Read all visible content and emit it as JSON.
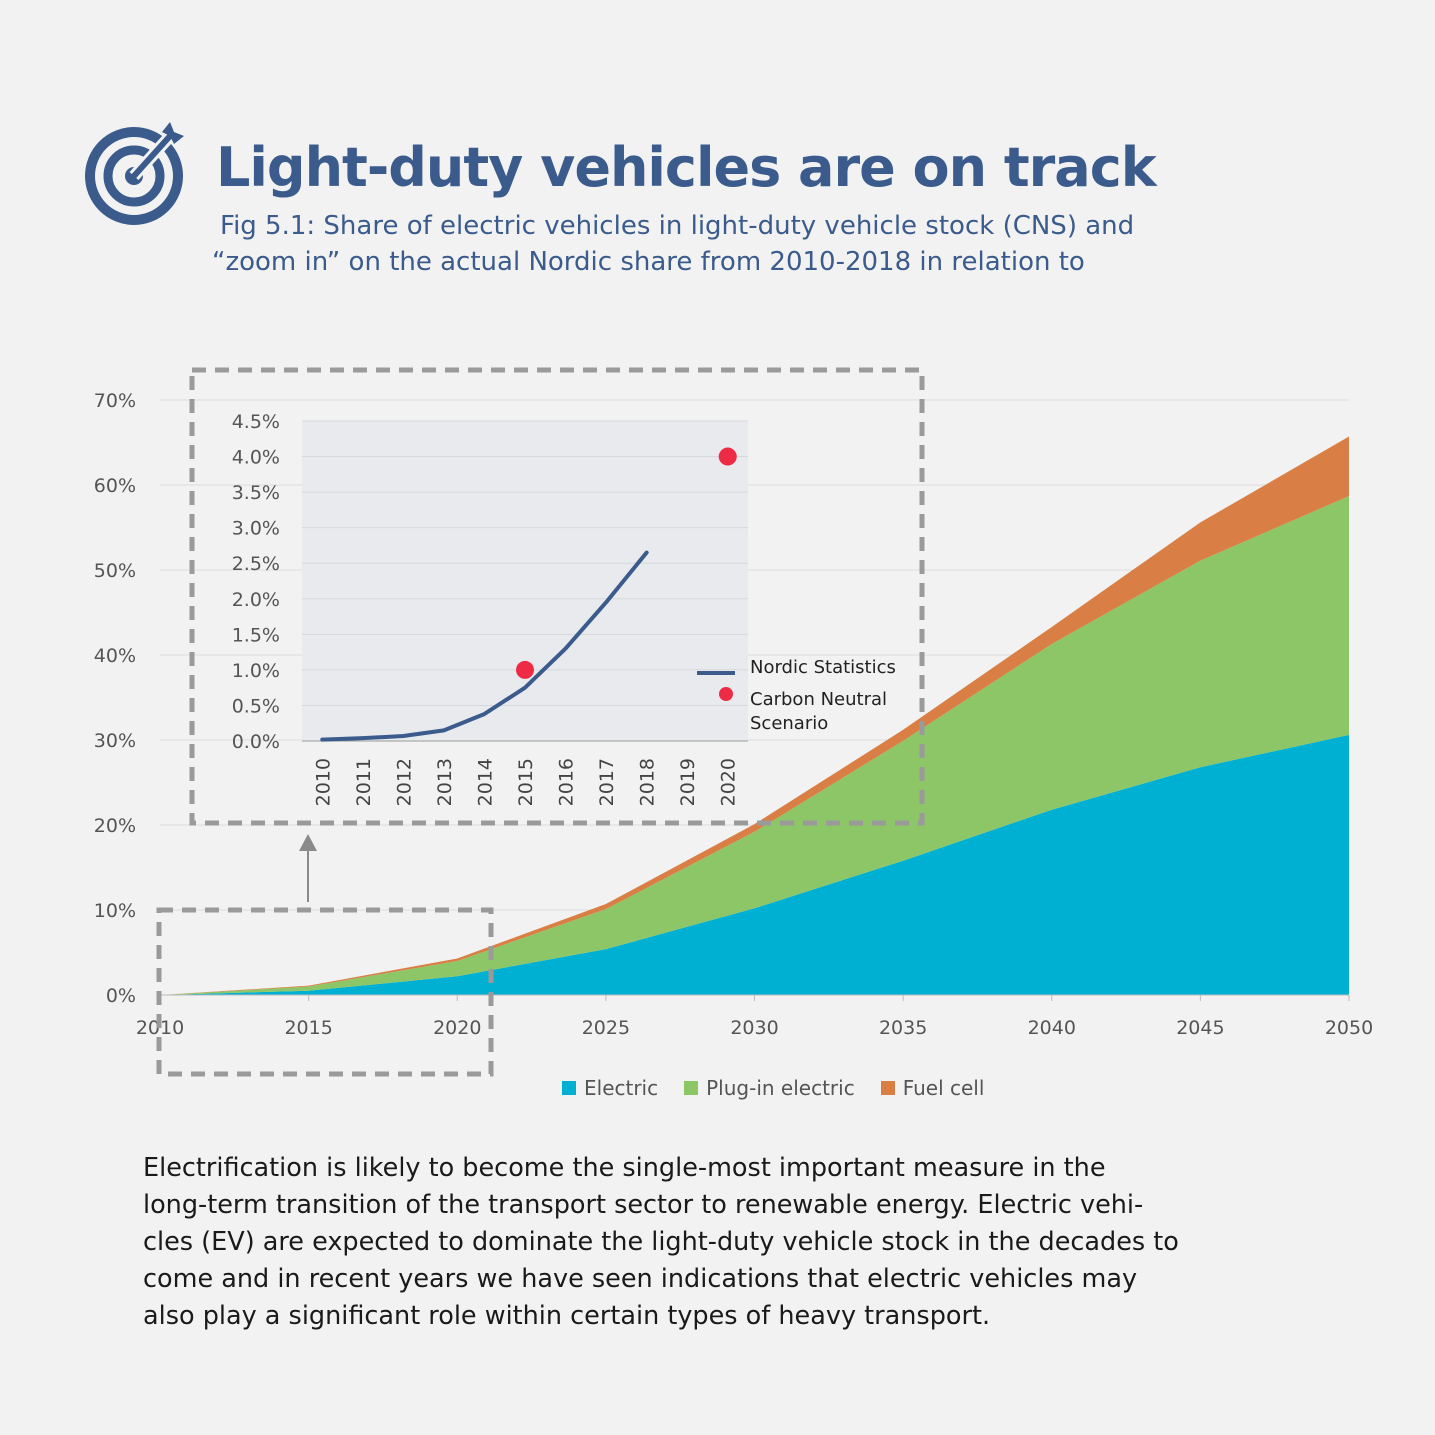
{
  "header": {
    "icon": "target-arrow-icon",
    "title": "Light-duty vehicles are on track",
    "subtitle_lines": [
      "Fig 5.1: Share of electric vehicles in light-duty vehicle stock (CNS) and",
      "“zoom in” on the actual Nordic share from 2010-2018 in relation to"
    ]
  },
  "colors": {
    "electric": "#00b0d3",
    "plugin": "#8dc666",
    "fuelcell": "#d97f45",
    "nordic_line": "#3a5b8c",
    "cns_point": "#ee2b45",
    "title": "#3a5b8c"
  },
  "chart_data": [
    {
      "type": "area",
      "stacked": true,
      "x": [
        2010,
        2015,
        2020,
        2025,
        2030,
        2035,
        2040,
        2045,
        2050
      ],
      "series": [
        {
          "name": "Electric",
          "values": [
            0.0,
            0.5,
            2.2,
            5.4,
            10.2,
            15.8,
            21.8,
            26.8,
            30.6
          ]
        },
        {
          "name": "Plug-in electric",
          "values": [
            0.0,
            0.5,
            1.8,
            4.7,
            9.0,
            14.1,
            19.5,
            24.3,
            28.1
          ]
        },
        {
          "name": "Fuel cell",
          "values": [
            0.0,
            0.1,
            0.3,
            0.6,
            0.9,
            1.3,
            2.0,
            4.5,
            7.0
          ]
        }
      ],
      "ylim": [
        0,
        70
      ],
      "yticks": [
        "0%",
        "10%",
        "20%",
        "30%",
        "40%",
        "50%",
        "60%",
        "70%"
      ],
      "xticks": [
        "2010",
        "2015",
        "2020",
        "2025",
        "2030",
        "2035",
        "2040",
        "2045",
        "2050"
      ],
      "grid": true,
      "legend_position": "bottom"
    },
    {
      "type": "line",
      "inset": true,
      "categories": [
        "2010",
        "2011",
        "2012",
        "2013",
        "2014",
        "2015",
        "2016",
        "2017",
        "2018",
        "2019",
        "2020"
      ],
      "series": [
        {
          "name": "Nordic Statistics",
          "kind": "line",
          "values": [
            0.02,
            0.04,
            0.07,
            0.15,
            0.38,
            0.75,
            1.3,
            1.95,
            2.65,
            null,
            null
          ]
        },
        {
          "name": "Carbon Neutral Scenario",
          "kind": "scatter",
          "points": [
            {
              "x": "2015",
              "y": 1.0
            },
            {
              "x": "2020",
              "y": 4.0
            }
          ]
        }
      ],
      "ylim": [
        0,
        4.5
      ],
      "yticks": [
        "0.0%",
        "0.5%",
        "1.0%",
        "1.5%",
        "2.0%",
        "2.5%",
        "3.0%",
        "3.5%",
        "4.0%",
        "4.5%"
      ],
      "legend_lines": [
        [
          "Nordic Statistics"
        ],
        [
          "Carbon Neutral",
          "Scenario"
        ]
      ],
      "legend_position": "right"
    }
  ],
  "body": {
    "lines": [
      "Electrification is likely to become the single-most important measure in the",
      "long-term transition of the transport sector to renewable energy. Electric vehi-",
      "cles (EV) are expected to dominate the light-duty vehicle stock in the decades to",
      "come and in recent years we have seen indications that electric vehicles may",
      "also play a significant role within certain types of heavy transport."
    ]
  }
}
